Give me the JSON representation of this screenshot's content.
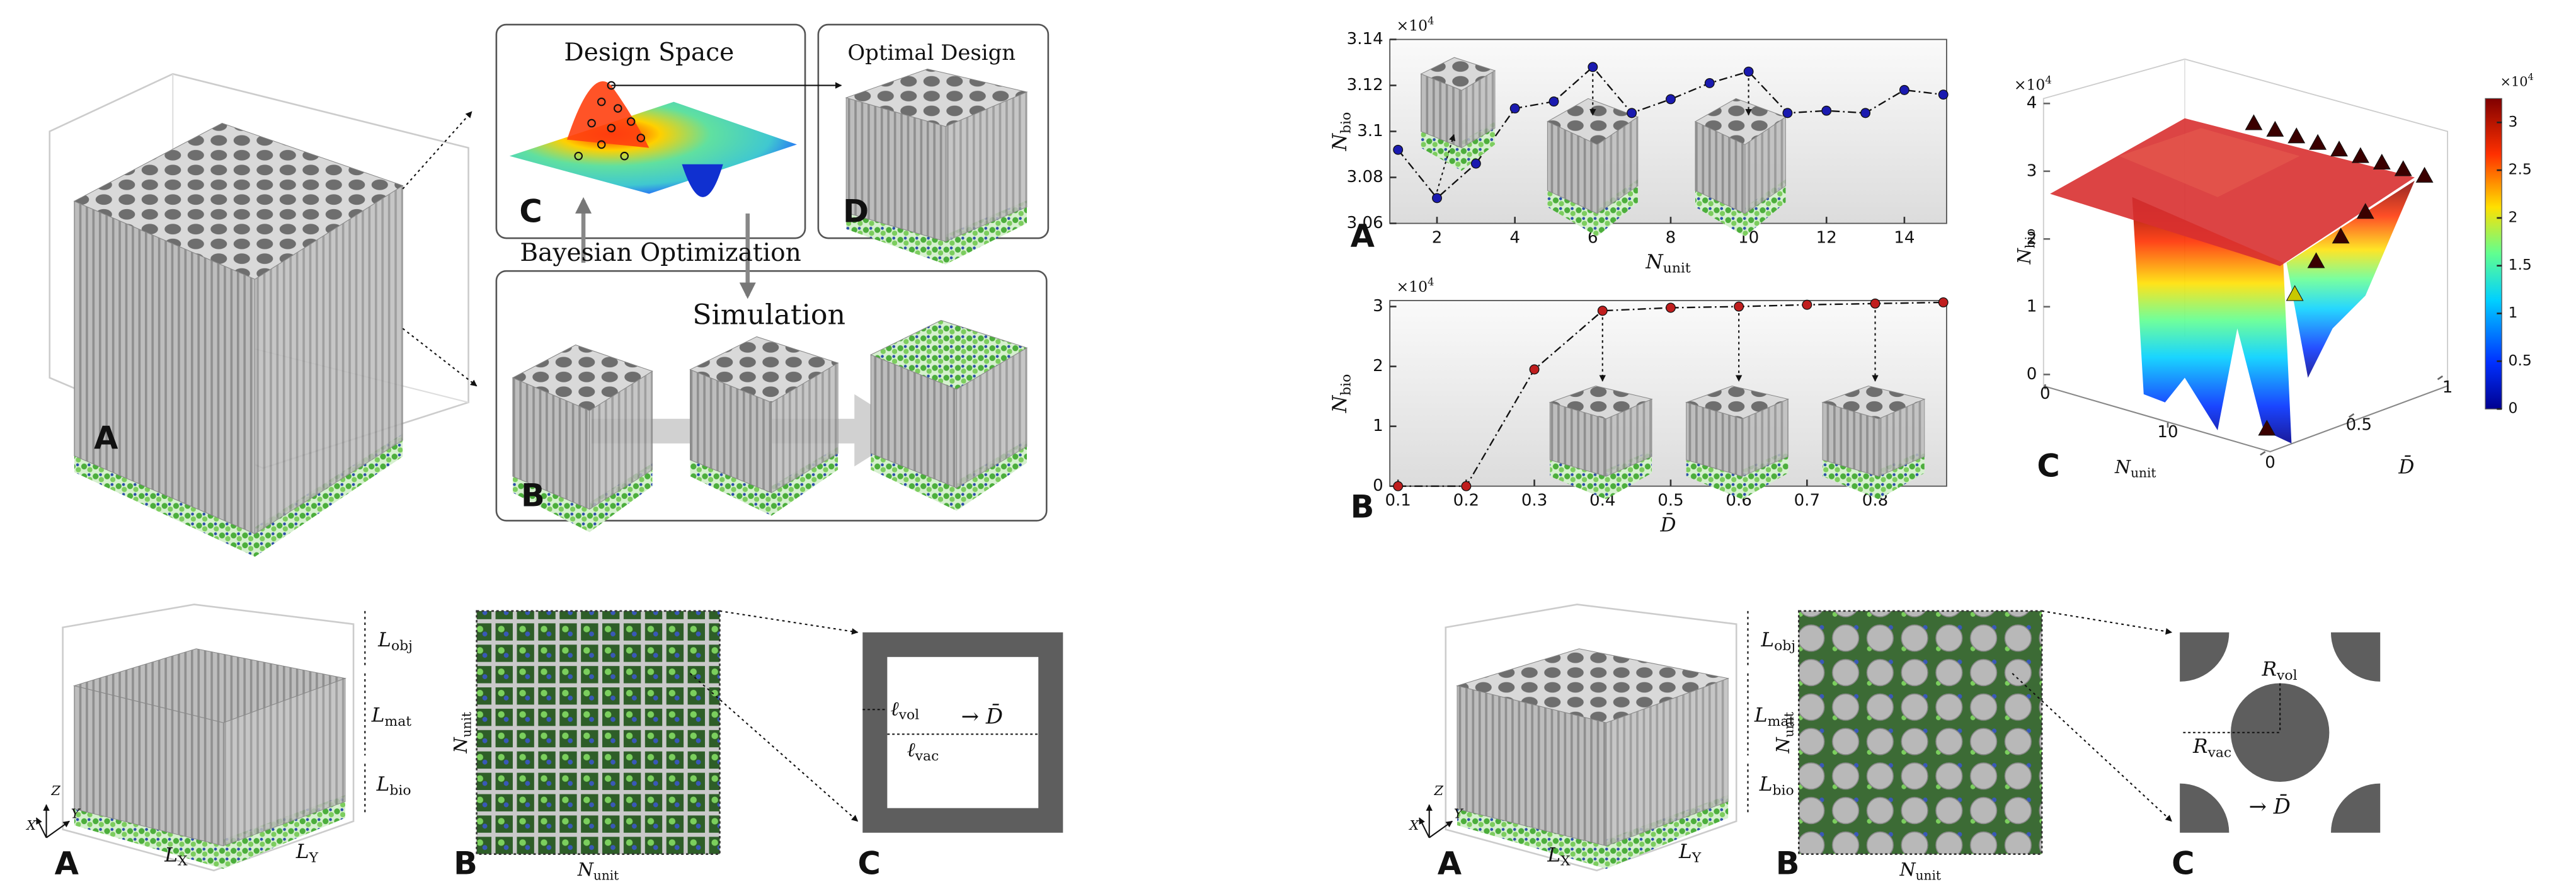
{
  "top_left": {
    "panels": [
      "A",
      "B",
      "C",
      "D"
    ],
    "design_space": "Design Space",
    "optimal_design": "Optimal Design",
    "bayesian_optimization": "Bayesian Optimization",
    "simulation": "Simulation"
  },
  "chart_data": [
    {
      "type": "line",
      "panel": "A",
      "x": [
        1,
        2,
        3,
        4,
        5,
        6,
        7,
        8,
        9,
        10,
        11,
        12,
        13,
        14,
        15
      ],
      "values": [
        3.092,
        3.071,
        3.086,
        3.11,
        3.113,
        3.128,
        3.108,
        3.114,
        3.121,
        3.126,
        3.108,
        3.109,
        3.108,
        3.118,
        3.116
      ],
      "color": "#1a1ab0",
      "xlim": [
        1,
        15
      ],
      "ylim": [
        3.06,
        3.14
      ],
      "xticks": [
        2,
        4,
        6,
        8,
        10,
        12,
        14
      ],
      "yticks": [
        3.06,
        3.08,
        3.1,
        3.12,
        3.14
      ],
      "multiplier": {
        "main": "×10",
        "sup": "4"
      },
      "xlabel": {
        "main": "N",
        "sub": "unit"
      },
      "ylabel": {
        "main": "N",
        "sub": "bio"
      }
    },
    {
      "type": "line",
      "panel": "B",
      "x": [
        0.1,
        0.2,
        0.3,
        0.4,
        0.5,
        0.6,
        0.7,
        0.8,
        0.9
      ],
      "values": [
        0,
        0,
        1.95,
        2.93,
        2.98,
        3.0,
        3.03,
        3.05,
        3.07
      ],
      "color": "#c01e1e",
      "xlim": [
        0.1,
        0.9
      ],
      "ylim": [
        0,
        3.1
      ],
      "xticks": [
        0.1,
        0.2,
        0.3,
        0.4,
        0.5,
        0.6,
        0.7,
        0.8
      ],
      "yticks": [
        0,
        1,
        2,
        3
      ],
      "multiplier": {
        "main": "×10",
        "sup": "4"
      },
      "xlabel": {
        "main": "D̄",
        "sub": ""
      },
      "ylabel": {
        "main": "N",
        "sub": "bio"
      }
    }
  ],
  "surface": {
    "panel": "C",
    "zlabel": {
      "main": "N",
      "sub": "bio"
    },
    "zlim": [
      0,
      4
    ],
    "zticks": [
      0,
      1,
      2,
      3,
      4
    ],
    "multiplier": {
      "main": "×10",
      "sup": "4"
    },
    "xlabel": {
      "main": "N",
      "sub": "unit"
    },
    "xlim": [
      0,
      15
    ],
    "xticks": [
      0,
      10
    ],
    "ylabel": "D̄",
    "ylim": [
      0,
      1
    ],
    "yticks": [
      0,
      0.5,
      1
    ],
    "colorbar": {
      "lim": [
        0,
        3.25
      ],
      "ticks": [
        0,
        0.5,
        1,
        1.5,
        2,
        2.5,
        3
      ],
      "multiplier": {
        "main": "×10",
        "sup": "4"
      }
    }
  },
  "bottom_left": {
    "panels": [
      "A",
      "B",
      "C"
    ],
    "axes": [
      "Z",
      "Y",
      "X"
    ],
    "l_obj": {
      "main": "L",
      "sub": "obj"
    },
    "l_mat": {
      "main": "L",
      "sub": "mat"
    },
    "l_bio": {
      "main": "L",
      "sub": "bio"
    },
    "l_x": {
      "main": "L",
      "sub": "X"
    },
    "l_y": {
      "main": "L",
      "sub": "Y"
    },
    "n_unit": {
      "main": "N",
      "sub": "unit"
    },
    "ell_vol": {
      "main": "ℓ",
      "sub": "vol"
    },
    "ell_vac": {
      "main": "ℓ",
      "sub": "vac"
    },
    "arrow_d": "→ D̄"
  },
  "bottom_right": {
    "panels": [
      "A",
      "B",
      "C"
    ],
    "axes": [
      "Z",
      "Y",
      "X"
    ],
    "l_obj": {
      "main": "L",
      "sub": "obj"
    },
    "l_mat": {
      "main": "L",
      "sub": "mat"
    },
    "l_bio": {
      "main": "L",
      "sub": "bio"
    },
    "l_x": {
      "main": "L",
      "sub": "X"
    },
    "l_y": {
      "main": "L",
      "sub": "Y"
    },
    "n_unit": {
      "main": "N",
      "sub": "unit"
    },
    "r_vol": {
      "main": "R",
      "sub": "vol"
    },
    "r_vac": {
      "main": "R",
      "sub": "vac"
    },
    "arrow_d": "→ D̄"
  }
}
